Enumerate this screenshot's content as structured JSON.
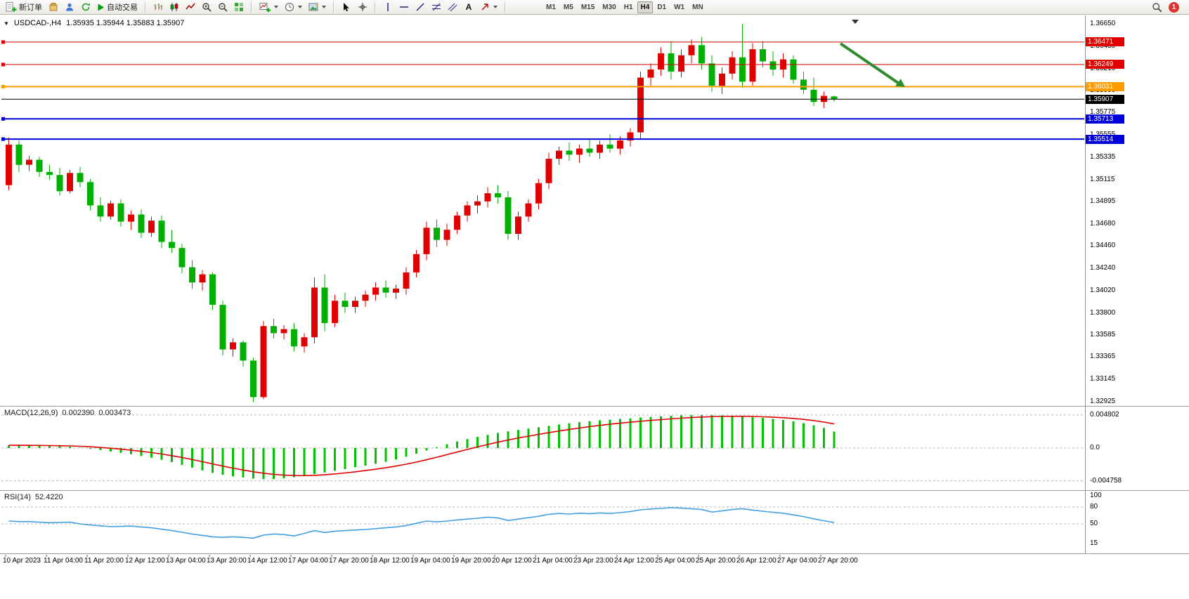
{
  "toolbar": {
    "new_order": "新订单",
    "auto_trading": "自动交易",
    "timeframes": [
      "M1",
      "M5",
      "M15",
      "M30",
      "H1",
      "H4",
      "D1",
      "W1",
      "MN"
    ],
    "active_timeframe": "H4",
    "notification_badge": "1"
  },
  "chart": {
    "symbol_period": "USDCAD-,H4",
    "ohlc": "1.35935 1.35944 1.35883 1.35907"
  },
  "chart_data": {
    "type": "candlestick",
    "symbol": "USDCAD",
    "period": "H4",
    "bull_color": "#e00000",
    "bear_color": "#00b000",
    "price_axis_labels": [
      "1.36650",
      "1.36430",
      "1.36210",
      "1.35990",
      "1.35775",
      "1.35555",
      "1.35335",
      "1.35115",
      "1.34895",
      "1.34680",
      "1.34460",
      "1.34240",
      "1.34020",
      "1.33800",
      "1.33585",
      "1.33365",
      "1.33145",
      "1.32925"
    ],
    "time_axis_labels": [
      "10 Apr 2023",
      "11 Apr 04:00",
      "11 Apr 20:00",
      "12 Apr 12:00",
      "13 Apr 04:00",
      "13 Apr 20:00",
      "14 Apr 12:00",
      "17 Apr 04:00",
      "17 Apr 20:00",
      "18 Apr 12:00",
      "19 Apr 04:00",
      "19 Apr 20:00",
      "20 Apr 12:00",
      "21 Apr 04:00",
      "23 Apr 23:00",
      "24 Apr 12:00",
      "25 Apr 04:00",
      "25 Apr 20:00",
      "26 Apr 12:00",
      "27 Apr 04:00",
      "27 Apr 20:00"
    ],
    "hlines": [
      {
        "price": 1.36471,
        "label": "1.36471",
        "color": "#e00000",
        "width": 1
      },
      {
        "price": 1.36249,
        "label": "1.36249",
        "color": "#e00000",
        "width": 1
      },
      {
        "price": 1.36031,
        "label": "1.36031",
        "color": "#ff9c00",
        "width": 2
      },
      {
        "price": 1.35907,
        "label": "1.35907",
        "color": "#000000",
        "width": 1,
        "current": true
      },
      {
        "price": 1.35713,
        "label": "1.35713",
        "color": "#0000d8",
        "width": 2
      },
      {
        "price": 1.35514,
        "label": "1.35514",
        "color": "#0000d8",
        "width": 2
      }
    ],
    "annotation": {
      "type": "arrow",
      "color": "#2e8b2e",
      "direction": "down-right"
    },
    "candles": [
      [
        1.3506,
        1.3553,
        1.3501,
        1.3546
      ],
      [
        1.3546,
        1.355,
        1.3519,
        1.3526
      ],
      [
        1.3526,
        1.3535,
        1.352,
        1.3531
      ],
      [
        1.3531,
        1.3534,
        1.3514,
        1.3519
      ],
      [
        1.3519,
        1.3526,
        1.3511,
        1.3516
      ],
      [
        1.3516,
        1.3523,
        1.3496,
        1.35
      ],
      [
        1.35,
        1.3521,
        1.3498,
        1.3518
      ],
      [
        1.3518,
        1.3524,
        1.3504,
        1.3509
      ],
      [
        1.3509,
        1.3512,
        1.3481,
        1.3486
      ],
      [
        1.3486,
        1.3494,
        1.347,
        1.3475
      ],
      [
        1.3475,
        1.3491,
        1.3472,
        1.3488
      ],
      [
        1.3488,
        1.3492,
        1.3465,
        1.347
      ],
      [
        1.347,
        1.3481,
        1.3462,
        1.3477
      ],
      [
        1.3477,
        1.3482,
        1.3454,
        1.3459
      ],
      [
        1.3459,
        1.3475,
        1.3455,
        1.3471
      ],
      [
        1.3471,
        1.3476,
        1.3444,
        1.345
      ],
      [
        1.345,
        1.3462,
        1.3439,
        1.3444
      ],
      [
        1.3444,
        1.3448,
        1.3419,
        1.3425
      ],
      [
        1.3425,
        1.3432,
        1.3404,
        1.341
      ],
      [
        1.341,
        1.3422,
        1.3402,
        1.3418
      ],
      [
        1.3418,
        1.342,
        1.3383,
        1.3388
      ],
      [
        1.3388,
        1.3392,
        1.3338,
        1.3344
      ],
      [
        1.3344,
        1.3355,
        1.3337,
        1.3351
      ],
      [
        1.3351,
        1.3353,
        1.3327,
        1.3333
      ],
      [
        1.3333,
        1.3336,
        1.3292,
        1.3297
      ],
      [
        1.3297,
        1.3372,
        1.3295,
        1.3367
      ],
      [
        1.3367,
        1.3374,
        1.3355,
        1.336
      ],
      [
        1.336,
        1.3368,
        1.3354,
        1.3364
      ],
      [
        1.3364,
        1.337,
        1.3342,
        1.3347
      ],
      [
        1.3347,
        1.336,
        1.3341,
        1.3356
      ],
      [
        1.3356,
        1.3415,
        1.335,
        1.3405
      ],
      [
        1.3405,
        1.3418,
        1.3362,
        1.337
      ],
      [
        1.337,
        1.3398,
        1.3366,
        1.3392
      ],
      [
        1.3392,
        1.34,
        1.338,
        1.3386
      ],
      [
        1.3386,
        1.3396,
        1.338,
        1.3392
      ],
      [
        1.3392,
        1.3402,
        1.3386,
        1.3398
      ],
      [
        1.3398,
        1.341,
        1.3392,
        1.3405
      ],
      [
        1.3405,
        1.3412,
        1.3395,
        1.34
      ],
      [
        1.34,
        1.3408,
        1.3394,
        1.3404
      ],
      [
        1.3404,
        1.3425,
        1.3398,
        1.342
      ],
      [
        1.342,
        1.3442,
        1.3415,
        1.3438
      ],
      [
        1.3438,
        1.347,
        1.3432,
        1.3464
      ],
      [
        1.3464,
        1.3472,
        1.3445,
        1.3452
      ],
      [
        1.3452,
        1.3468,
        1.3446,
        1.3462
      ],
      [
        1.3462,
        1.348,
        1.3458,
        1.3476
      ],
      [
        1.3476,
        1.349,
        1.347,
        1.3486
      ],
      [
        1.3486,
        1.3496,
        1.3478,
        1.349
      ],
      [
        1.349,
        1.3504,
        1.3484,
        1.3498
      ],
      [
        1.3498,
        1.3506,
        1.3488,
        1.3494
      ],
      [
        1.3494,
        1.35,
        1.3452,
        1.3458
      ],
      [
        1.3458,
        1.348,
        1.3452,
        1.3475
      ],
      [
        1.3475,
        1.3492,
        1.347,
        1.3488
      ],
      [
        1.3488,
        1.3512,
        1.3482,
        1.3508
      ],
      [
        1.3508,
        1.3538,
        1.3502,
        1.3532
      ],
      [
        1.3532,
        1.3544,
        1.3526,
        1.354
      ],
      [
        1.354,
        1.3548,
        1.353,
        1.3536
      ],
      [
        1.3536,
        1.3546,
        1.3528,
        1.3542
      ],
      [
        1.3542,
        1.3552,
        1.3534,
        1.3538
      ],
      [
        1.3538,
        1.355,
        1.3532,
        1.3546
      ],
      [
        1.3546,
        1.3556,
        1.3538,
        1.3542
      ],
      [
        1.3542,
        1.3554,
        1.3536,
        1.355
      ],
      [
        1.355,
        1.3562,
        1.3544,
        1.3558
      ],
      [
        1.3558,
        1.3618,
        1.3552,
        1.3612
      ],
      [
        1.3612,
        1.3626,
        1.3604,
        1.362
      ],
      [
        1.362,
        1.3642,
        1.3614,
        1.3636
      ],
      [
        1.3636,
        1.3648,
        1.361,
        1.3618
      ],
      [
        1.3618,
        1.364,
        1.3612,
        1.3634
      ],
      [
        1.3634,
        1.365,
        1.3626,
        1.3644
      ],
      [
        1.3644,
        1.3652,
        1.362,
        1.3626
      ],
      [
        1.3626,
        1.3634,
        1.3598,
        1.3604
      ],
      [
        1.3604,
        1.3622,
        1.3596,
        1.3616
      ],
      [
        1.3616,
        1.3638,
        1.361,
        1.3632
      ],
      [
        1.3632,
        1.3665,
        1.3602,
        1.3608
      ],
      [
        1.3608,
        1.3646,
        1.3604,
        1.364
      ],
      [
        1.364,
        1.3648,
        1.3622,
        1.3628
      ],
      [
        1.3628,
        1.3638,
        1.3614,
        1.362
      ],
      [
        1.362,
        1.3636,
        1.3612,
        1.363
      ],
      [
        1.363,
        1.3634,
        1.3606,
        1.361
      ],
      [
        1.361,
        1.3618,
        1.3596,
        1.36
      ],
      [
        1.36,
        1.3612,
        1.3584,
        1.3588
      ],
      [
        1.3588,
        1.3598,
        1.3582,
        1.3594
      ],
      [
        1.35935,
        1.35944,
        1.35883,
        1.35907
      ]
    ],
    "macd": {
      "label": "MACD(12,26,9)",
      "main_value": "0.002390",
      "signal_value": "0.003473",
      "axis_labels": [
        "0.004802",
        "0.0",
        "-0.004758"
      ],
      "axis_values": [
        0.004802,
        0,
        -0.004758
      ],
      "hist_color": "#00c000",
      "signal_color": "#e00000",
      "histogram": [
        0.0004,
        0.00038,
        0.00035,
        0.00032,
        0.0003,
        0.00025,
        0.00018,
        5e-05,
        -0.00012,
        -0.0003,
        -0.0005,
        -0.0007,
        -0.0009,
        -0.00115,
        -0.0014,
        -0.0017,
        -0.00205,
        -0.00245,
        -0.00285,
        -0.00325,
        -0.0036,
        -0.0039,
        -0.0041,
        -0.00428,
        -0.00445,
        -0.00452,
        -0.0045,
        -0.0044,
        -0.00425,
        -0.00405,
        -0.0038,
        -0.00355,
        -0.0033,
        -0.00305,
        -0.0028,
        -0.00255,
        -0.0023,
        -0.002,
        -0.00165,
        -0.00125,
        -0.00082,
        -0.00035,
        0.00012,
        0.00055,
        0.00095,
        0.0013,
        0.00162,
        0.00192,
        0.0022,
        0.00242,
        0.00262,
        0.00282,
        0.00302,
        0.00322,
        0.00342,
        0.0036,
        0.00376,
        0.0039,
        0.00402,
        0.00412,
        0.00422,
        0.00432,
        0.00442,
        0.00452,
        0.0046,
        0.00468,
        0.00474,
        0.00478,
        0.0048,
        0.00478,
        0.00474,
        0.00468,
        0.0046,
        0.0045,
        0.00438,
        0.00424,
        0.00408,
        0.00388,
        0.00362,
        0.0033,
        0.00292,
        0.00239
      ]
    },
    "rsi": {
      "label": "RSI(14)",
      "value": "52.4220",
      "color": "#42a0e0",
      "axis_labels": [
        "100",
        "80",
        "50",
        "15"
      ],
      "axis_values": [
        100,
        80,
        50,
        15
      ],
      "level_lines": [
        80,
        50
      ],
      "series": [
        55,
        54,
        54,
        53,
        52,
        52.5,
        53,
        50,
        48,
        46.5,
        45,
        45.5,
        46,
        44.5,
        43,
        40.5,
        38,
        35,
        32,
        29.5,
        27,
        26,
        27,
        26,
        24.5,
        30,
        32,
        31,
        28.5,
        33,
        38,
        34.5,
        37,
        38,
        39,
        40,
        41.5,
        43,
        44.5,
        47,
        51,
        55,
        53.5,
        55,
        57,
        58.5,
        60,
        62,
        60.5,
        56,
        58.5,
        61,
        63.5,
        67,
        68.5,
        67.5,
        69,
        68,
        69.5,
        68.5,
        70,
        72,
        75,
        76.5,
        77.5,
        79,
        78,
        77,
        75.5,
        71,
        73,
        75.5,
        77,
        74.5,
        72.5,
        70.5,
        69,
        66,
        63,
        59,
        55.5,
        52.42
      ]
    }
  }
}
